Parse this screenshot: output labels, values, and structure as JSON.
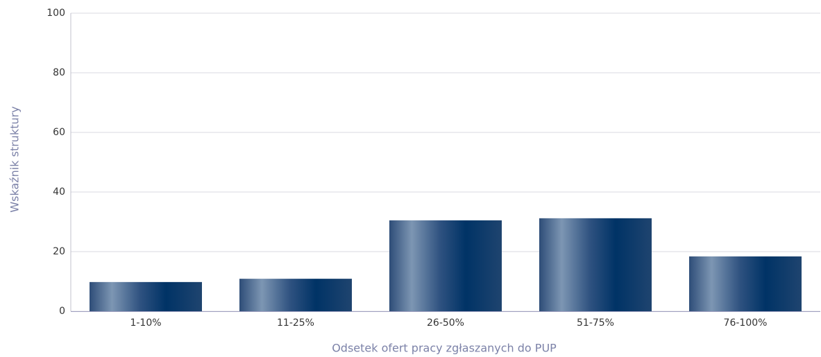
{
  "chart_data": {
    "type": "bar",
    "x_label": "Odsetek ofert pracy zgłaszanych do PUP",
    "y_label": "Wskaźnik struktury",
    "categories": [
      "1-10%",
      "11-25%",
      "26-50%",
      "51-75%",
      "76-100%"
    ],
    "values": [
      9.8,
      10.9,
      30.5,
      31.2,
      18.4
    ],
    "color": "#003366",
    "ylim": [
      0,
      100
    ],
    "yticks": [
      0,
      20,
      40,
      60,
      80,
      100
    ],
    "grid": true
  }
}
